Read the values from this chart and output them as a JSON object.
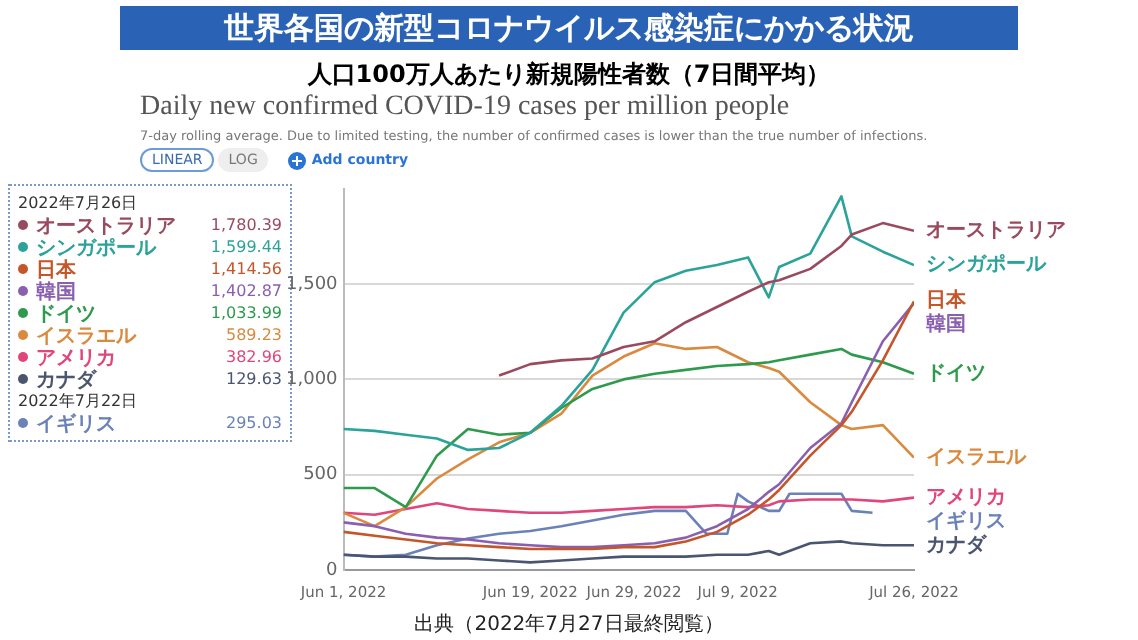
{
  "chart_data": {
    "type": "line",
    "title": "世界各国の新型コロナウイルス感染症にかかる状況",
    "subtitle": "人口100万人あたり新規陽性者数（7日間平均）",
    "annotations": [
      "Daily new confirmed COVID-19 cases per million people",
      "7-day rolling average. Due to limited testing, the number of confirmed cases is lower than the true number of infections.",
      "LINEAR",
      "LOG",
      "Add country",
      "2022年7月26日",
      "1,780.39",
      "1,599.44",
      "1,414.56",
      "1,402.87",
      "1,033.99",
      "589.23",
      "382.96",
      "129.63",
      "2022年7月22日",
      "295.03",
      "出典（2022年7月27日最終閲覧）"
    ],
    "x": [
      "2022-06-01",
      "2022-06-04",
      "2022-06-07",
      "2022-06-10",
      "2022-06-13",
      "2022-06-16",
      "2022-06-19",
      "2022-06-22",
      "2022-06-25",
      "2022-06-28",
      "2022-07-01",
      "2022-07-04",
      "2022-07-07",
      "2022-07-10",
      "2022-07-12",
      "2022-07-13",
      "2022-07-16",
      "2022-07-19",
      "2022-07-20",
      "2022-07-23",
      "2022-07-26"
    ],
    "series": [
      {
        "name": "オーストラリア",
        "color": "#9a4a5e",
        "values": [
          null,
          null,
          null,
          null,
          null,
          1020,
          1080,
          1100,
          1110,
          1170,
          1200,
          1300,
          1380,
          1460,
          1510,
          1520,
          1580,
          1700,
          1760,
          1820,
          1780
        ]
      },
      {
        "name": "シンガポール",
        "color": "#2ba39a",
        "values": [
          740,
          730,
          710,
          690,
          630,
          640,
          720,
          860,
          1050,
          1350,
          1510,
          1570,
          1600,
          1640,
          1430,
          1590,
          1660,
          1960,
          1750,
          1670,
          1600
        ]
      },
      {
        "name": "日本",
        "color": "#c4562a",
        "values": [
          200,
          180,
          160,
          140,
          130,
          120,
          110,
          110,
          110,
          120,
          120,
          150,
          200,
          290,
          370,
          420,
          600,
          760,
          830,
          1100,
          1410
        ]
      },
      {
        "name": "韓国",
        "color": "#8a5fb0",
        "values": [
          250,
          230,
          190,
          170,
          160,
          140,
          130,
          120,
          120,
          130,
          140,
          170,
          230,
          320,
          410,
          450,
          640,
          770,
          880,
          1200,
          1400
        ]
      },
      {
        "name": "ドイツ",
        "color": "#2e9a4e",
        "values": [
          430,
          430,
          330,
          600,
          740,
          710,
          720,
          850,
          950,
          1000,
          1030,
          1050,
          1070,
          1080,
          1090,
          1100,
          1130,
          1160,
          1130,
          1090,
          1030
        ]
      },
      {
        "name": "イスラエル",
        "color": "#d98a3f",
        "values": [
          300,
          230,
          330,
          480,
          580,
          670,
          720,
          820,
          1020,
          1120,
          1190,
          1160,
          1170,
          1090,
          1060,
          1040,
          880,
          760,
          740,
          760,
          590
        ]
      },
      {
        "name": "アメリカ",
        "color": "#e0457b",
        "values": [
          300,
          290,
          320,
          350,
          320,
          310,
          300,
          300,
          310,
          320,
          330,
          330,
          340,
          330,
          340,
          360,
          370,
          370,
          370,
          360,
          380
        ]
      },
      {
        "name": "カナダ",
        "color": "#4a5570",
        "values": [
          80,
          70,
          70,
          60,
          60,
          50,
          40,
          50,
          60,
          70,
          70,
          70,
          80,
          80,
          100,
          80,
          140,
          150,
          140,
          130,
          130
        ]
      },
      {
        "name": "イギリス",
        "color": "#6b82b8",
        "x": [
          "2022-06-01",
          "2022-06-04",
          "2022-06-07",
          "2022-06-10",
          "2022-06-13",
          "2022-06-16",
          "2022-06-19",
          "2022-06-22",
          "2022-06-25",
          "2022-06-28",
          "2022-07-01",
          "2022-07-04",
          "2022-07-06",
          "2022-07-08",
          "2022-07-09",
          "2022-07-10",
          "2022-07-12",
          "2022-07-13",
          "2022-07-14",
          "2022-07-16",
          "2022-07-19",
          "2022-07-20",
          "2022-07-22"
        ],
        "values": [
          80,
          70,
          80,
          130,
          165,
          190,
          205,
          230,
          260,
          290,
          310,
          310,
          190,
          190,
          400,
          360,
          310,
          310,
          400,
          400,
          400,
          310,
          300
        ]
      }
    ],
    "xlim": [
      "2022-06-01",
      "2022-07-26"
    ],
    "xticks": [
      {
        "value": "2022-06-01",
        "label": "Jun 1, 2022"
      },
      {
        "value": "2022-06-19",
        "label": "Jun 19, 2022"
      },
      {
        "value": "2022-06-29",
        "label": "Jun 29, 2022"
      },
      {
        "value": "2022-07-09",
        "label": "Jul 9, 2022"
      },
      {
        "value": "2022-07-26",
        "label": "Jul 26, 2022"
      }
    ],
    "ylim": [
      0,
      2000
    ],
    "yticks": [
      0,
      500,
      {
        "value": 1000,
        "label": "1,000"
      },
      {
        "value": 1500,
        "label": "1,500"
      }
    ],
    "grid": "y",
    "legend": "left"
  }
}
